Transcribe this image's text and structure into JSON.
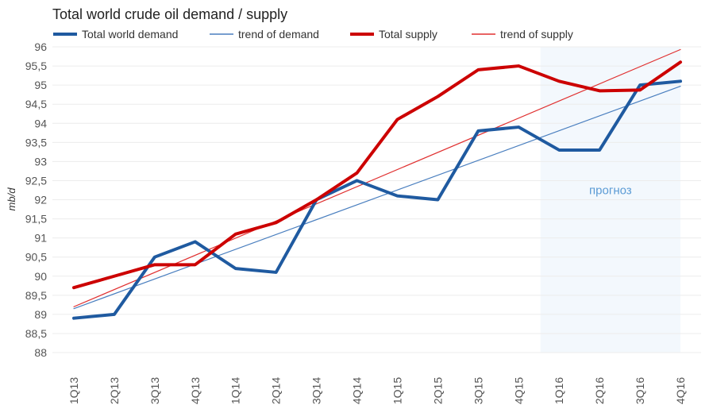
{
  "chart_data": {
    "type": "line",
    "title": "Total world crude oil demand / supply",
    "xlabel": "",
    "ylabel": "mb/d",
    "ylim": [
      88,
      96
    ],
    "yticks": [
      88,
      88.5,
      89,
      89.5,
      90,
      90.5,
      91,
      91.5,
      92,
      92.5,
      93,
      93.5,
      94,
      94.5,
      95,
      95.5,
      96
    ],
    "ytick_labels": [
      "88",
      "88,5",
      "89",
      "89,5",
      "90",
      "90,5",
      "91",
      "91,5",
      "92",
      "92,5",
      "93",
      "93,5",
      "94",
      "94,5",
      "95",
      "95,5",
      "96"
    ],
    "grid": true,
    "legend_position": "top",
    "categories": [
      "1Q13",
      "2Q13",
      "3Q13",
      "4Q13",
      "1Q14",
      "2Q14",
      "3Q14",
      "4Q14",
      "1Q15",
      "2Q15",
      "3Q15",
      "4Q15",
      "1Q16",
      "2Q16",
      "3Q16",
      "4Q16"
    ],
    "series": [
      {
        "name": "Total world demand",
        "color": "#1f5aa0",
        "style": "thick",
        "values": [
          88.9,
          89.0,
          90.5,
          90.9,
          90.2,
          90.1,
          92.0,
          92.5,
          92.1,
          92.0,
          93.8,
          93.9,
          93.3,
          93.3,
          95.0,
          95.1
        ]
      },
      {
        "name": "trend of demand",
        "color": "#4a7fbf",
        "style": "thin",
        "values": [
          89.15,
          94.97
        ],
        "trend": true
      },
      {
        "name": "Total supply",
        "color": "#cc0000",
        "style": "thick",
        "values": [
          89.7,
          90.0,
          90.3,
          90.3,
          91.1,
          91.4,
          92.0,
          92.7,
          94.1,
          94.7,
          95.4,
          95.5,
          95.1,
          94.85,
          94.87,
          95.6
        ]
      },
      {
        "name": "trend of supply",
        "color": "#e03030",
        "style": "thin",
        "values": [
          89.2,
          95.93
        ],
        "trend": true
      }
    ],
    "annotations": [
      {
        "text": "прогноз",
        "region_from": "1Q16",
        "region_to": "4Q16",
        "color": "#5b9bd5",
        "fill": "#f3f8fd",
        "y": 92.25
      }
    ]
  }
}
